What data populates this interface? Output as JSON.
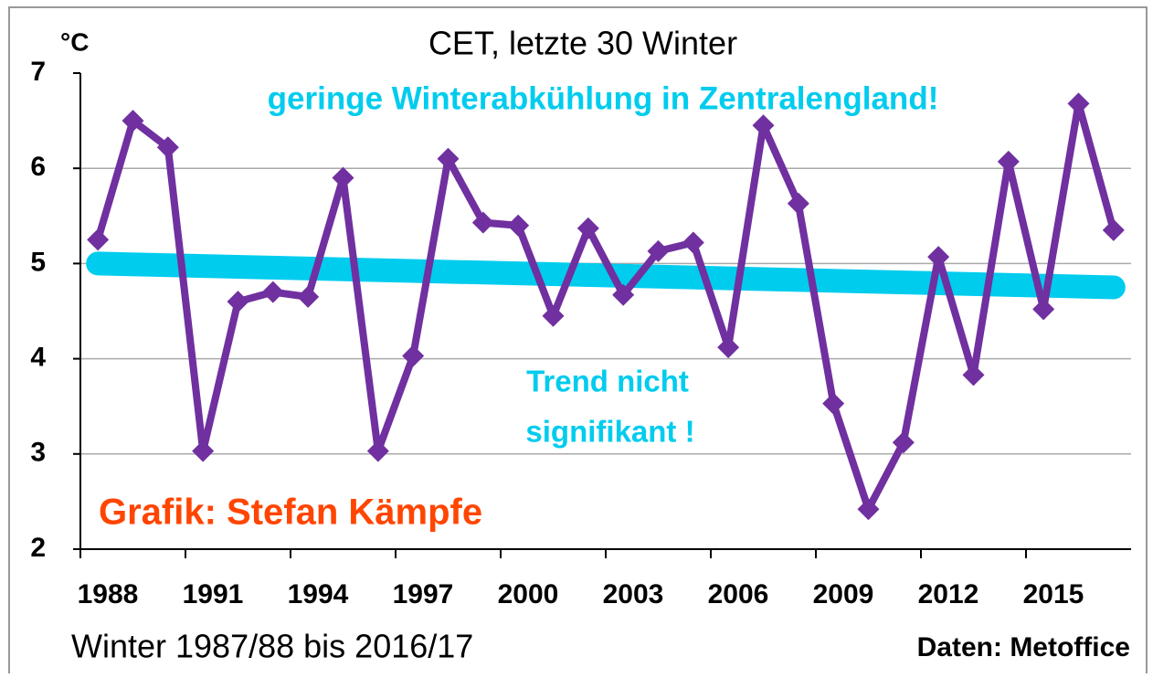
{
  "chart_data": {
    "type": "line",
    "title": "CET, letzte 30 Winter",
    "y_unit": "°C",
    "x_label": "Winter 1987/88 bis 2016/17",
    "source": "Daten: Metoffice",
    "annotations": [
      "geringe Winterabkühlung in Zentralengland!",
      "Trend nicht",
      "signifikant !",
      "Grafik: Stefan Kämpfe"
    ],
    "x": [
      1988,
      1989,
      1990,
      1991,
      1992,
      1993,
      1994,
      1995,
      1996,
      1997,
      1998,
      1999,
      2000,
      2001,
      2002,
      2003,
      2004,
      2005,
      2006,
      2007,
      2008,
      2009,
      2010,
      2011,
      2012,
      2013,
      2014,
      2015,
      2016,
      2017
    ],
    "series": [
      {
        "color": "#7030a0",
        "values": [
          5.25,
          6.5,
          6.22,
          3.03,
          4.6,
          4.7,
          4.65,
          5.9,
          3.03,
          4.03,
          6.1,
          5.43,
          5.4,
          4.45,
          5.37,
          4.67,
          5.13,
          5.22,
          4.12,
          6.45,
          5.63,
          3.53,
          2.42,
          3.12,
          5.07,
          3.83,
          6.07,
          4.52,
          6.68,
          5.35
        ]
      }
    ],
    "trend": {
      "x": [
        1988,
        2017
      ],
      "values": [
        5.0,
        4.75
      ],
      "color": "#00ccee"
    },
    "xlim": [
      1987.5,
      2017.5
    ],
    "xticks": [
      1988,
      1991,
      1994,
      1997,
      2000,
      2003,
      2006,
      2009,
      2012,
      2015
    ],
    "ylim": [
      2,
      7
    ],
    "yticks": [
      2,
      3,
      4,
      5,
      6,
      7
    ],
    "grid": true
  }
}
